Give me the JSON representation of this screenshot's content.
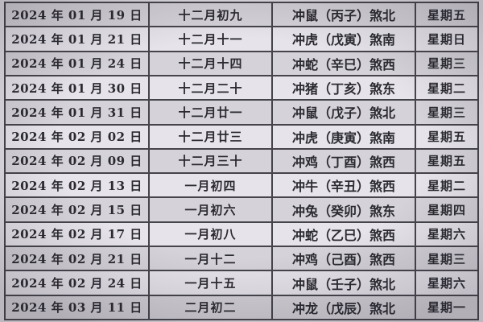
{
  "colors": {
    "row_odd_bg": "#d5d2d9",
    "row_even_bg": "#e6e3ea",
    "grid_border": "#46444b",
    "text": "#2b2a31",
    "page_bg": "#e0dde4"
  },
  "table": {
    "rows": [
      {
        "date": "2024 年 01 月 19 日",
        "lunar": "十二月初九",
        "clash": "冲鼠（丙子）煞北",
        "weekday": "星期五"
      },
      {
        "date": "2024 年 01 月 21 日",
        "lunar": "十二月十一",
        "clash": "冲虎（戊寅）煞南",
        "weekday": "星期日"
      },
      {
        "date": "2024 年 01 月 24 日",
        "lunar": "十二月十四",
        "clash": "冲蛇（辛巳）煞西",
        "weekday": "星期三"
      },
      {
        "date": "2024 年 01 月 30 日",
        "lunar": "十二月二十",
        "clash": "冲猪（丁亥）煞东",
        "weekday": "星期二"
      },
      {
        "date": "2024 年 01 月 31 日",
        "lunar": "十二月廿一",
        "clash": "冲鼠（戊子）煞北",
        "weekday": "星期三"
      },
      {
        "date": "2024 年 02 月 02 日",
        "lunar": "十二月廿三",
        "clash": "冲虎（庚寅）煞南",
        "weekday": "星期五"
      },
      {
        "date": "2024 年 02 月 09 日",
        "lunar": "十二月三十",
        "clash": "冲鸡（丁酉）煞西",
        "weekday": "星期五"
      },
      {
        "date": "2024 年 02 月 13 日",
        "lunar": "一月初四",
        "clash": "冲牛（辛丑）煞西",
        "weekday": "星期二"
      },
      {
        "date": "2024 年 02 月 15 日",
        "lunar": "一月初六",
        "clash": "冲兔（癸卯）煞东",
        "weekday": "星期四"
      },
      {
        "date": "2024 年 02 月 17 日",
        "lunar": "一月初八",
        "clash": "冲蛇（乙巳）煞西",
        "weekday": "星期六"
      },
      {
        "date": "2024 年 02 月 21 日",
        "lunar": "一月十二",
        "clash": "冲鸡（己酉）煞西",
        "weekday": "星期三"
      },
      {
        "date": "2024 年 02 月 24 日",
        "lunar": "一月十五",
        "clash": "冲鼠（壬子）煞北",
        "weekday": "星期六"
      },
      {
        "date": "2024 年 03 月 11 日",
        "lunar": "二月初二",
        "clash": "冲龙（戊辰）煞北",
        "weekday": "星期一"
      }
    ]
  }
}
